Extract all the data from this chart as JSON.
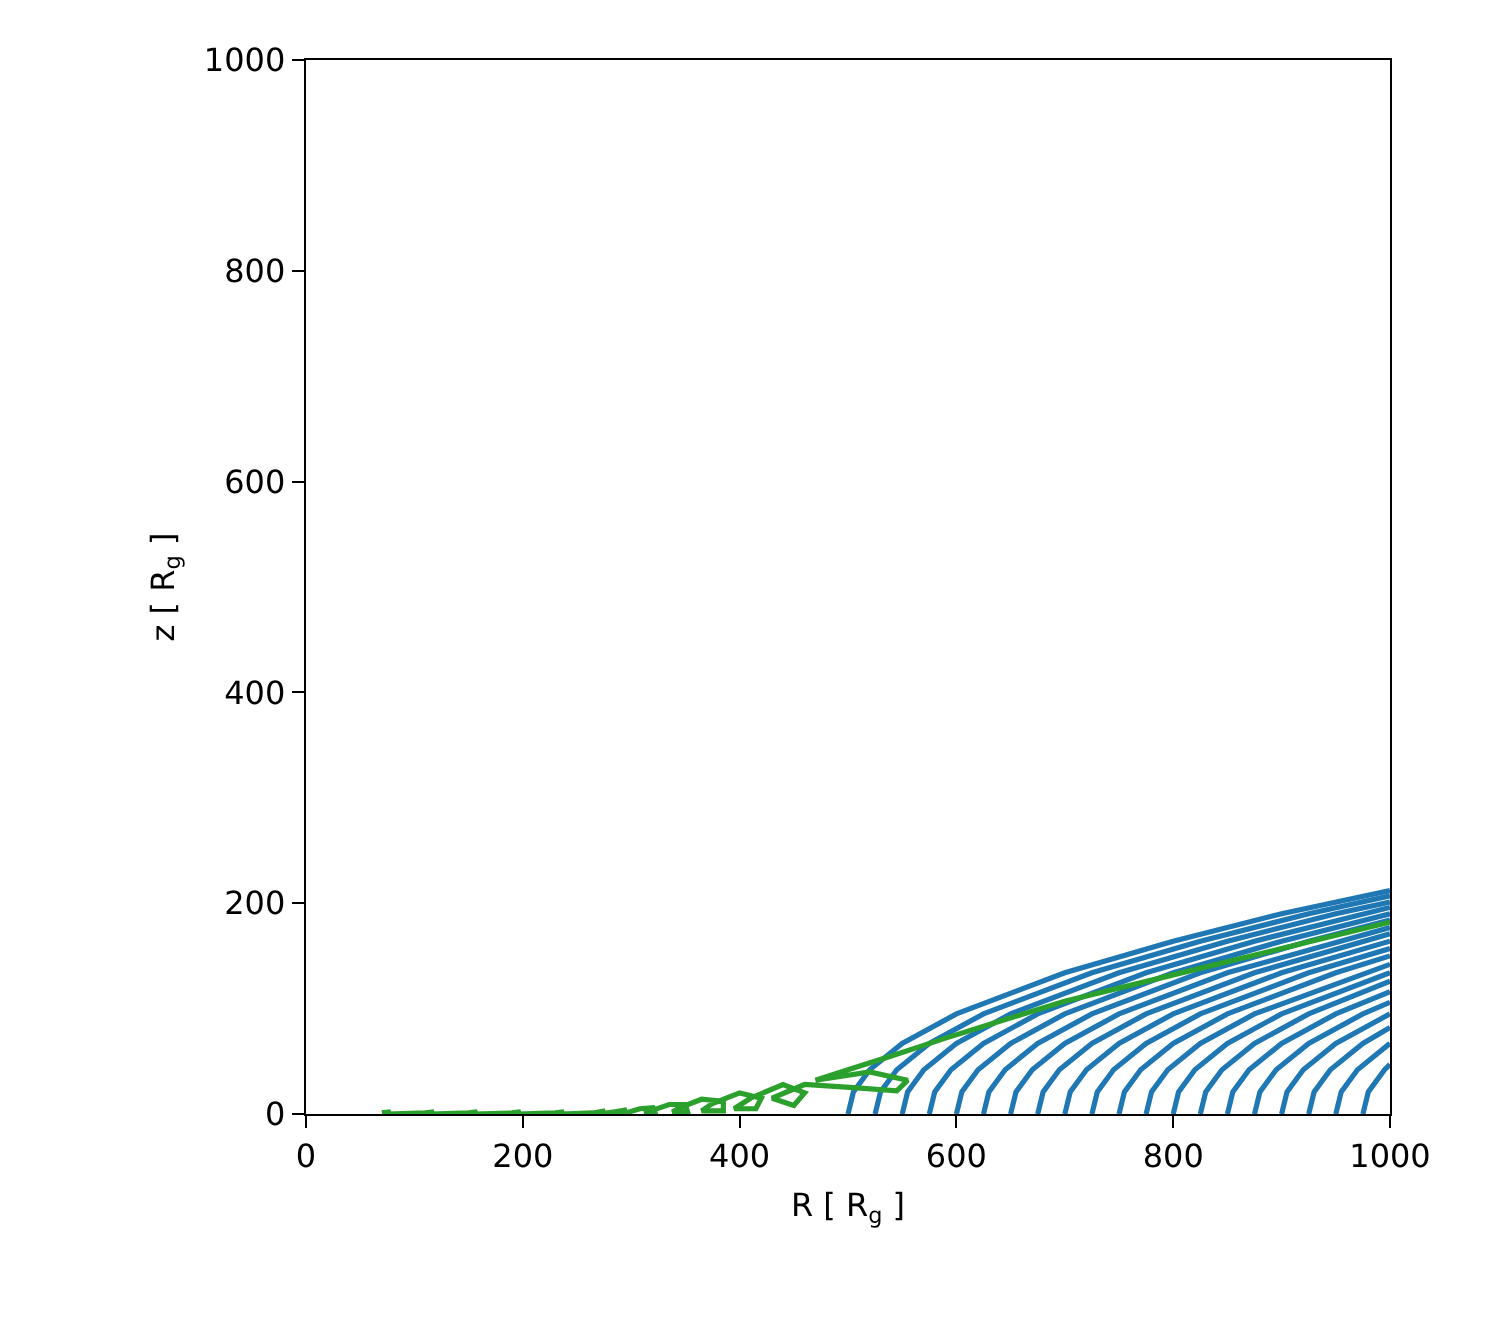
{
  "chart_data": {
    "type": "line",
    "xlabel": "R [ R$_{g}$ ]",
    "ylabel": "z [ R$_{g}$ ]",
    "xlim": [
      0,
      1000
    ],
    "ylim": [
      0,
      1000
    ],
    "xticks": [
      0,
      200,
      400,
      600,
      800,
      1000
    ],
    "yticks": [
      0,
      200,
      400,
      600,
      800,
      1000
    ],
    "grid": false,
    "marker": "none",
    "line_style": "solid",
    "series": [
      {
        "color": "#1f77b4",
        "x": [
          500,
          505,
          520,
          550,
          600,
          700,
          800,
          900,
          1000
        ],
        "values": [
          0,
          21,
          42,
          67,
          95,
          134,
          164,
          190,
          212
        ]
      },
      {
        "color": "#1f77b4",
        "x": [
          525,
          530,
          545,
          575,
          625,
          725,
          825,
          925,
          1000
        ],
        "values": [
          0,
          21,
          42,
          67,
          95,
          134,
          164,
          190,
          207
        ]
      },
      {
        "color": "#1f77b4",
        "x": [
          550,
          555,
          570,
          600,
          650,
          750,
          850,
          950,
          1000
        ],
        "values": [
          0,
          21,
          42,
          67,
          95,
          134,
          164,
          190,
          201
        ]
      },
      {
        "color": "#1f77b4",
        "x": [
          575,
          580,
          595,
          625,
          675,
          775,
          875,
          1000
        ],
        "values": [
          0,
          21,
          42,
          67,
          95,
          134,
          164,
          196
        ]
      },
      {
        "color": "#1f77b4",
        "x": [
          600,
          605,
          620,
          650,
          700,
          800,
          900,
          1000
        ],
        "values": [
          0,
          21,
          42,
          67,
          95,
          134,
          164,
          190
        ]
      },
      {
        "color": "#1f77b4",
        "x": [
          625,
          630,
          645,
          675,
          725,
          825,
          925,
          1000
        ],
        "values": [
          0,
          21,
          42,
          67,
          95,
          134,
          164,
          184
        ]
      },
      {
        "color": "#1f77b4",
        "x": [
          650,
          655,
          670,
          700,
          750,
          850,
          1000
        ],
        "values": [
          0,
          21,
          42,
          67,
          95,
          134,
          177
        ]
      },
      {
        "color": "#1f77b4",
        "x": [
          675,
          680,
          695,
          725,
          775,
          875,
          1000
        ],
        "values": [
          0,
          21,
          42,
          67,
          95,
          134,
          171
        ]
      },
      {
        "color": "#1f77b4",
        "x": [
          700,
          705,
          720,
          750,
          800,
          900,
          1000
        ],
        "values": [
          0,
          21,
          42,
          67,
          95,
          134,
          164
        ]
      },
      {
        "color": "#1f77b4",
        "x": [
          725,
          730,
          745,
          775,
          825,
          925,
          1000
        ],
        "values": [
          0,
          21,
          42,
          67,
          95,
          134,
          157
        ]
      },
      {
        "color": "#1f77b4",
        "x": [
          750,
          755,
          770,
          800,
          850,
          950,
          1000
        ],
        "values": [
          0,
          21,
          42,
          67,
          95,
          134,
          150
        ]
      },
      {
        "color": "#1f77b4",
        "x": [
          775,
          780,
          795,
          825,
          875,
          1000
        ],
        "values": [
          0,
          21,
          42,
          67,
          95,
          142
        ]
      },
      {
        "color": "#1f77b4",
        "x": [
          800,
          805,
          820,
          850,
          900,
          1000
        ],
        "values": [
          0,
          21,
          42,
          67,
          95,
          134
        ]
      },
      {
        "color": "#1f77b4",
        "x": [
          825,
          830,
          845,
          875,
          925,
          1000
        ],
        "values": [
          0,
          21,
          42,
          67,
          95,
          126
        ]
      },
      {
        "color": "#1f77b4",
        "x": [
          850,
          855,
          870,
          900,
          950,
          1000
        ],
        "values": [
          0,
          21,
          42,
          67,
          95,
          116
        ]
      },
      {
        "color": "#1f77b4",
        "x": [
          875,
          880,
          895,
          925,
          975,
          1000
        ],
        "values": [
          0,
          21,
          42,
          67,
          95,
          106
        ]
      },
      {
        "color": "#1f77b4",
        "x": [
          900,
          905,
          920,
          950,
          1000
        ],
        "values": [
          0,
          21,
          42,
          67,
          95
        ]
      },
      {
        "color": "#1f77b4",
        "x": [
          925,
          930,
          945,
          975,
          1000
        ],
        "values": [
          0,
          21,
          42,
          67,
          82
        ]
      },
      {
        "color": "#1f77b4",
        "x": [
          950,
          955,
          970,
          1000
        ],
        "values": [
          0,
          21,
          42,
          67
        ]
      },
      {
        "color": "#1f77b4",
        "x": [
          975,
          980,
          995,
          1000
        ],
        "values": [
          0,
          21,
          42,
          47
        ]
      },
      {
        "color": "#2ca02c",
        "x": [
          1000,
          900,
          800,
          700,
          640,
          590,
          540,
          500,
          470,
          520,
          555,
          545,
          505,
          460,
          430,
          450,
          460,
          440,
          410,
          395,
          415,
          420,
          400,
          375,
          365,
          385,
          385,
          365,
          345,
          338,
          352,
          350,
          335,
          318,
          312,
          322,
          320,
          308,
          295,
          290,
          296,
          285,
          270,
          276,
          265,
          235,
          238,
          230,
          195,
          198,
          190,
          155,
          158,
          150,
          115,
          118,
          110,
          75,
          78,
          70
        ],
        "values": [
          182,
          157,
          132,
          107,
          88,
          72,
          55,
          42,
          32,
          40,
          32,
          22,
          25,
          28,
          15,
          8,
          20,
          28,
          15,
          5,
          5,
          15,
          20,
          10,
          3,
          3,
          12,
          14,
          6,
          2,
          2,
          9,
          9,
          3,
          1,
          1,
          6,
          5,
          1,
          1,
          4,
          2,
          0,
          3,
          1,
          0,
          2,
          1,
          0,
          2,
          1,
          0,
          2,
          1,
          0,
          2,
          1,
          0,
          2,
          1
        ]
      }
    ]
  }
}
